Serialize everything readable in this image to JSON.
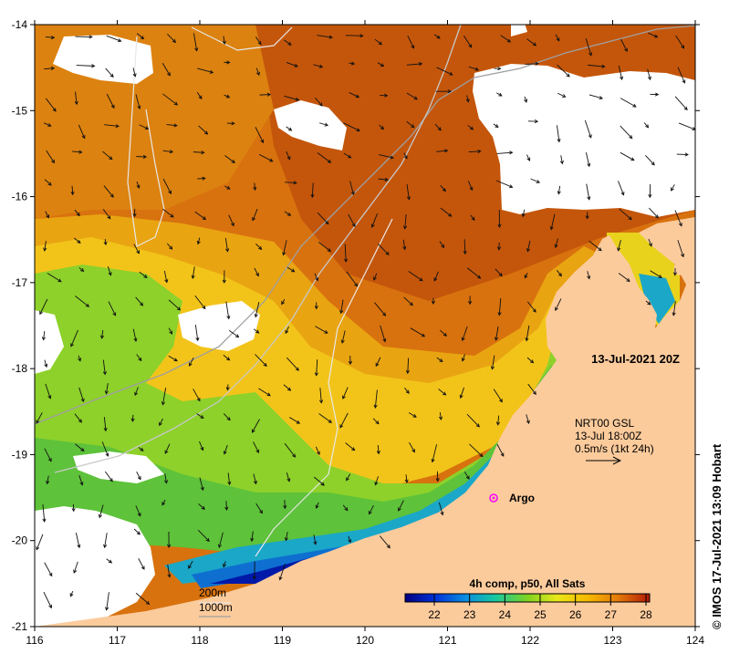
{
  "map": {
    "date_label": "13-Jul-2021 20Z",
    "current_info": {
      "line1": "NRT00 GSL",
      "line2": "13-Jul 18:00Z",
      "line3": "0.5m/s (1kt 24h)"
    },
    "argo_label": "Argo",
    "credit": "© IMOS 17-Jul-2021 13:09 Hobart",
    "isobath_legend": {
      "shallow": "200m",
      "deep": "1000m"
    },
    "colorbar": {
      "title": "4h comp, p50, All Sats",
      "ticks": [
        "22",
        "23",
        "24",
        "25",
        "26",
        "27",
        "28"
      ]
    },
    "x_ticks": [
      "116",
      "117",
      "118",
      "119",
      "120",
      "121",
      "122",
      "123",
      "124"
    ],
    "y_ticks": [
      "-14",
      "-15",
      "-16",
      "-17",
      "-18",
      "-19",
      "-20",
      "-21"
    ],
    "colors": {
      "land": "#fccb9c",
      "cloud": "#ffffff",
      "warm": "#d8720e",
      "hot": "#c4560b",
      "mid": "#f2c41a",
      "green": "#7fd323",
      "cool": "#0e6fd0",
      "cold": "#0019a8",
      "argo": "#ff00ff"
    }
  }
}
